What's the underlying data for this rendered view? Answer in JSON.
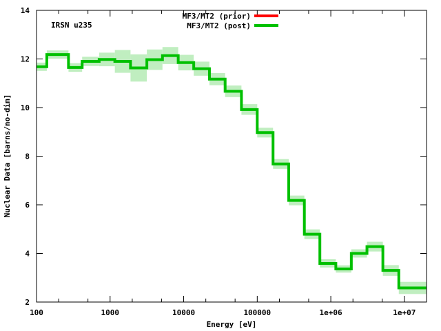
{
  "chart_data": {
    "type": "line",
    "title": "",
    "annotation": "IRSN u235",
    "xlabel": "Energy [eV]",
    "ylabel": "Nuclear Data [barns/no-dim]",
    "xscale": "log",
    "xlim": [
      100,
      20000000
    ],
    "ylim": [
      2,
      14
    ],
    "grid": false,
    "legend_position": "top-center",
    "x_ticks": [
      {
        "value": 100,
        "label": "100"
      },
      {
        "value": 1000,
        "label": "1000"
      },
      {
        "value": 10000,
        "label": "10000"
      },
      {
        "value": 100000,
        "label": "100000"
      },
      {
        "value": 1000000,
        "label": "1e+06"
      },
      {
        "value": 10000000,
        "label": "1e+07"
      }
    ],
    "y_ticks": [
      {
        "value": 2,
        "label": "2"
      },
      {
        "value": 4,
        "label": "4"
      },
      {
        "value": 6,
        "label": "6"
      },
      {
        "value": 8,
        "label": "8"
      },
      {
        "value": 10,
        "label": "10"
      },
      {
        "value": 12,
        "label": "12"
      },
      {
        "value": 14,
        "label": "14"
      }
    ],
    "bin_edges": [
      100,
      138,
      272,
      417,
      710,
      1160,
      1895,
      3160,
      5150,
      8430,
      13700,
      22400,
      36600,
      61000,
      100000,
      164000,
      268000,
      437000,
      710000,
      1170000,
      1900000,
      3100000,
      5100000,
      8400000,
      20000000
    ],
    "series": [
      {
        "name": "MF3/MT2 (prior)",
        "color": "#ff0000",
        "values": []
      },
      {
        "name": "MF3/MT2 (post)",
        "color": "#00c000",
        "values": [
          11.68,
          12.18,
          11.65,
          11.9,
          11.98,
          11.9,
          11.63,
          11.97,
          12.14,
          11.85,
          11.6,
          11.17,
          10.67,
          9.92,
          8.97,
          7.68,
          6.18,
          4.79,
          3.59,
          3.36,
          4.0,
          4.28,
          3.3,
          2.58
        ],
        "uncertainty": [
          0.17,
          0.17,
          0.18,
          0.19,
          0.28,
          0.47,
          0.56,
          0.42,
          0.35,
          0.32,
          0.29,
          0.25,
          0.24,
          0.22,
          0.2,
          0.2,
          0.2,
          0.2,
          0.17,
          0.15,
          0.17,
          0.2,
          0.22,
          0.25
        ],
        "band_color": "#c0eec0"
      }
    ]
  }
}
